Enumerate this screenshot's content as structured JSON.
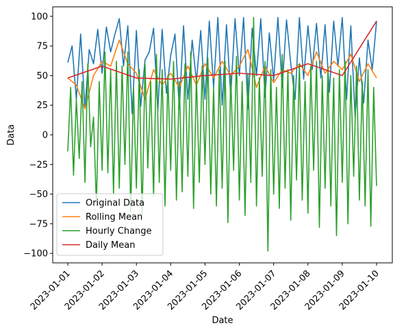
{
  "chart_data": {
    "type": "line",
    "xlabel": "Date",
    "ylabel": "Data",
    "xlim": [
      "2023-01-01",
      "2023-01-10"
    ],
    "ylim": [
      -108,
      108
    ],
    "x_ticks": [
      "2023-01-01",
      "2023-01-02",
      "2023-01-03",
      "2023-01-04",
      "2023-01-05",
      "2023-01-06",
      "2023-01-07",
      "2023-01-08",
      "2023-01-09",
      "2023-01-10"
    ],
    "y_ticks": [
      -100,
      -75,
      -50,
      -25,
      0,
      25,
      50,
      75,
      100
    ],
    "y_tick_labels": [
      "−100",
      "−75",
      "−50",
      "−25",
      "0",
      "25",
      "50",
      "75",
      "100"
    ],
    "grid": false,
    "legend_position": "lower-left",
    "series": [
      {
        "name": "Original Data",
        "color": "#1f77b4",
        "x": [
          "2023-01-01 00:00",
          "2023-01-01 03:00",
          "2023-01-01 06:00",
          "2023-01-01 09:00",
          "2023-01-01 12:00",
          "2023-01-01 15:00",
          "2023-01-01 18:00",
          "2023-01-01 21:00",
          "2023-01-02 00:00",
          "2023-01-02 03:00",
          "2023-01-02 06:00",
          "2023-01-02 09:00",
          "2023-01-02 12:00",
          "2023-01-02 15:00",
          "2023-01-02 18:00",
          "2023-01-02 21:00",
          "2023-01-03 00:00",
          "2023-01-03 03:00",
          "2023-01-03 06:00",
          "2023-01-03 09:00",
          "2023-01-03 12:00",
          "2023-01-03 15:00",
          "2023-01-03 18:00",
          "2023-01-03 21:00",
          "2023-01-04 00:00",
          "2023-01-04 03:00",
          "2023-01-04 06:00",
          "2023-01-04 09:00",
          "2023-01-04 12:00",
          "2023-01-04 15:00",
          "2023-01-04 18:00",
          "2023-01-04 21:00",
          "2023-01-05 00:00",
          "2023-01-05 03:00",
          "2023-01-05 06:00",
          "2023-01-05 09:00",
          "2023-01-05 12:00",
          "2023-01-05 15:00",
          "2023-01-05 18:00",
          "2023-01-05 21:00",
          "2023-01-06 00:00",
          "2023-01-06 03:00",
          "2023-01-06 06:00",
          "2023-01-06 09:00",
          "2023-01-06 12:00",
          "2023-01-06 15:00",
          "2023-01-06 18:00",
          "2023-01-06 21:00",
          "2023-01-07 00:00",
          "2023-01-07 03:00",
          "2023-01-07 06:00",
          "2023-01-07 09:00",
          "2023-01-07 12:00",
          "2023-01-07 15:00",
          "2023-01-07 18:00",
          "2023-01-07 21:00",
          "2023-01-08 00:00",
          "2023-01-08 03:00",
          "2023-01-08 06:00",
          "2023-01-08 09:00",
          "2023-01-08 12:00",
          "2023-01-08 15:00",
          "2023-01-08 18:00",
          "2023-01-08 21:00",
          "2023-01-09 00:00",
          "2023-01-09 03:00",
          "2023-01-09 06:00",
          "2023-01-09 09:00",
          "2023-01-09 12:00",
          "2023-01-09 15:00",
          "2023-01-09 18:00",
          "2023-01-09 21:00",
          "2023-01-10 00:00"
        ],
        "values": [
          61,
          75,
          30,
          85,
          22,
          72,
          60,
          89,
          52,
          91,
          70,
          85,
          98,
          58,
          92,
          18,
          88,
          24,
          63,
          70,
          90,
          20,
          89,
          35,
          67,
          85,
          22,
          92,
          30,
          80,
          45,
          88,
          30,
          96,
          40,
          99,
          25,
          93,
          33,
          98,
          50,
          99,
          22,
          90,
          50,
          98,
          32,
          86,
          46,
          99,
          40,
          97,
          60,
          30,
          99,
          47,
          92,
          55,
          94,
          48,
          93,
          36,
          96,
          58,
          99,
          30,
          92,
          15,
          65,
          27,
          80,
          55,
          96
        ]
      },
      {
        "name": "Rolling Mean",
        "color": "#ff7f0e",
        "x": [
          "2023-01-01 00:00",
          "2023-01-01 06:00",
          "2023-01-01 12:00",
          "2023-01-01 18:00",
          "2023-01-02 00:00",
          "2023-01-02 06:00",
          "2023-01-02 12:00",
          "2023-01-02 18:00",
          "2023-01-03 00:00",
          "2023-01-03 06:00",
          "2023-01-03 12:00",
          "2023-01-03 18:00",
          "2023-01-04 00:00",
          "2023-01-04 06:00",
          "2023-01-04 12:00",
          "2023-01-04 18:00",
          "2023-01-05 00:00",
          "2023-01-05 06:00",
          "2023-01-05 12:00",
          "2023-01-05 18:00",
          "2023-01-06 00:00",
          "2023-01-06 06:00",
          "2023-01-06 12:00",
          "2023-01-06 18:00",
          "2023-01-07 00:00",
          "2023-01-07 06:00",
          "2023-01-07 12:00",
          "2023-01-07 18:00",
          "2023-01-08 00:00",
          "2023-01-08 06:00",
          "2023-01-08 12:00",
          "2023-01-08 18:00",
          "2023-01-09 00:00",
          "2023-01-09 06:00",
          "2023-01-09 12:00",
          "2023-01-09 18:00",
          "2023-01-10 00:00"
        ],
        "values": [
          48,
          42,
          22,
          50,
          62,
          58,
          80,
          60,
          52,
          30,
          55,
          42,
          52,
          40,
          58,
          42,
          60,
          48,
          62,
          50,
          58,
          72,
          40,
          58,
          44,
          55,
          52,
          60,
          50,
          70,
          52,
          62,
          55,
          68,
          45,
          60,
          48
        ]
      },
      {
        "name": "Hourly Change",
        "color": "#2ca02c",
        "x": [
          "2023-01-01 00:00",
          "2023-01-01 02:00",
          "2023-01-01 04:00",
          "2023-01-01 06:00",
          "2023-01-01 08:00",
          "2023-01-01 10:00",
          "2023-01-01 12:00",
          "2023-01-01 14:00",
          "2023-01-01 16:00",
          "2023-01-01 18:00",
          "2023-01-01 20:00",
          "2023-01-01 22:00",
          "2023-01-02 00:00",
          "2023-01-02 02:00",
          "2023-01-02 04:00",
          "2023-01-02 06:00",
          "2023-01-02 08:00",
          "2023-01-02 10:00",
          "2023-01-02 12:00",
          "2023-01-02 14:00",
          "2023-01-02 16:00",
          "2023-01-02 18:00",
          "2023-01-02 20:00",
          "2023-01-02 22:00",
          "2023-01-03 00:00",
          "2023-01-03 02:00",
          "2023-01-03 04:00",
          "2023-01-03 06:00",
          "2023-01-03 08:00",
          "2023-01-03 10:00",
          "2023-01-03 12:00",
          "2023-01-03 14:00",
          "2023-01-03 16:00",
          "2023-01-03 18:00",
          "2023-01-03 20:00",
          "2023-01-03 22:00",
          "2023-01-04 00:00",
          "2023-01-04 02:00",
          "2023-01-04 04:00",
          "2023-01-04 06:00",
          "2023-01-04 08:00",
          "2023-01-04 10:00",
          "2023-01-04 12:00",
          "2023-01-04 14:00",
          "2023-01-04 16:00",
          "2023-01-04 18:00",
          "2023-01-04 20:00",
          "2023-01-04 22:00",
          "2023-01-05 00:00",
          "2023-01-05 02:00",
          "2023-01-05 04:00",
          "2023-01-05 06:00",
          "2023-01-05 08:00",
          "2023-01-05 10:00",
          "2023-01-05 12:00",
          "2023-01-05 14:00",
          "2023-01-05 16:00",
          "2023-01-05 18:00",
          "2023-01-05 20:00",
          "2023-01-05 22:00",
          "2023-01-06 00:00",
          "2023-01-06 02:00",
          "2023-01-06 04:00",
          "2023-01-06 06:00",
          "2023-01-06 08:00",
          "2023-01-06 10:00",
          "2023-01-06 12:00",
          "2023-01-06 14:00",
          "2023-01-06 16:00",
          "2023-01-06 18:00",
          "2023-01-06 20:00",
          "2023-01-06 22:00",
          "2023-01-07 00:00",
          "2023-01-07 02:00",
          "2023-01-07 04:00",
          "2023-01-07 06:00",
          "2023-01-07 08:00",
          "2023-01-07 10:00",
          "2023-01-07 12:00",
          "2023-01-07 14:00",
          "2023-01-07 16:00",
          "2023-01-07 18:00",
          "2023-01-07 20:00",
          "2023-01-07 22:00",
          "2023-01-08 00:00",
          "2023-01-08 02:00",
          "2023-01-08 04:00",
          "2023-01-08 06:00",
          "2023-01-08 08:00",
          "2023-01-08 10:00",
          "2023-01-08 12:00",
          "2023-01-08 14:00",
          "2023-01-08 16:00",
          "2023-01-08 18:00",
          "2023-01-08 20:00",
          "2023-01-08 22:00",
          "2023-01-09 00:00",
          "2023-01-09 02:00",
          "2023-01-09 04:00",
          "2023-01-09 06:00",
          "2023-01-09 08:00",
          "2023-01-09 10:00",
          "2023-01-09 12:00",
          "2023-01-09 14:00",
          "2023-01-09 16:00",
          "2023-01-09 18:00",
          "2023-01-09 20:00",
          "2023-01-09 22:00",
          "2023-01-10 00:00"
        ],
        "values": [
          -14,
          40,
          -34,
          30,
          -20,
          45,
          -40,
          60,
          -10,
          15,
          -60,
          45,
          -30,
          70,
          -32,
          55,
          -50,
          62,
          -45,
          58,
          -25,
          70,
          -65,
          40,
          -45,
          55,
          -70,
          60,
          -28,
          45,
          -52,
          68,
          -40,
          55,
          -60,
          50,
          -30,
          62,
          -55,
          45,
          -48,
          60,
          -35,
          70,
          -62,
          50,
          -40,
          58,
          -25,
          65,
          -50,
          40,
          -60,
          55,
          -45,
          62,
          -74,
          50,
          -30,
          66,
          -55,
          45,
          -68,
          52,
          -40,
          99,
          -60,
          48,
          -35,
          62,
          -98,
          55,
          -50,
          40,
          -62,
          68,
          -45,
          55,
          -72,
          50,
          -38,
          60,
          -55,
          45,
          -66,
          58,
          -30,
          62,
          -78,
          50,
          -45,
          55,
          -60,
          48,
          -85,
          55,
          -40,
          62,
          -75,
          50,
          -35,
          58,
          -55,
          45,
          -60,
          55,
          -77,
          40,
          -43
        ]
      },
      {
        "name": "Daily Mean",
        "color": "#d62728",
        "x": [
          "2023-01-01",
          "2023-01-02",
          "2023-01-03",
          "2023-01-04",
          "2023-01-05",
          "2023-01-06",
          "2023-01-07",
          "2023-01-08",
          "2023-01-09",
          "2023-01-10"
        ],
        "values": [
          48,
          58,
          48,
          47,
          50,
          52,
          50,
          60,
          50,
          96
        ]
      }
    ]
  }
}
